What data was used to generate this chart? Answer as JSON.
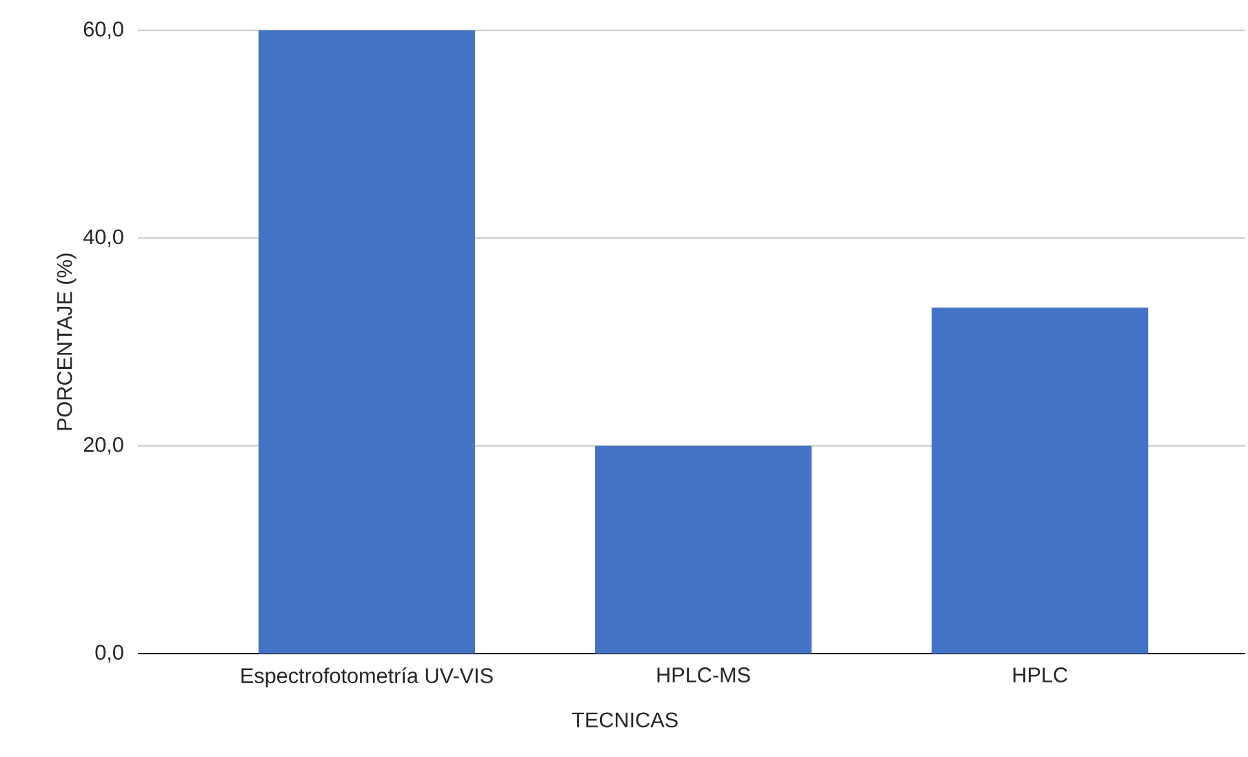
{
  "chart_data": {
    "type": "bar",
    "xlabel": "TECNICAS",
    "ylabel": "PORCENTAJE (%)",
    "categories": [
      "Espectrofotometría UV-VIS",
      "HPLC-MS",
      "HPLC"
    ],
    "values": [
      60.0,
      20.0,
      33.3
    ],
    "color": "#4472c4",
    "ylim": [
      0,
      60
    ],
    "yticks": [
      {
        "value": 0,
        "label": "0,0"
      },
      {
        "value": 20,
        "label": "20,0"
      },
      {
        "value": 40,
        "label": "40,0"
      },
      {
        "value": 60,
        "label": "60,0"
      }
    ],
    "grid": "y"
  }
}
